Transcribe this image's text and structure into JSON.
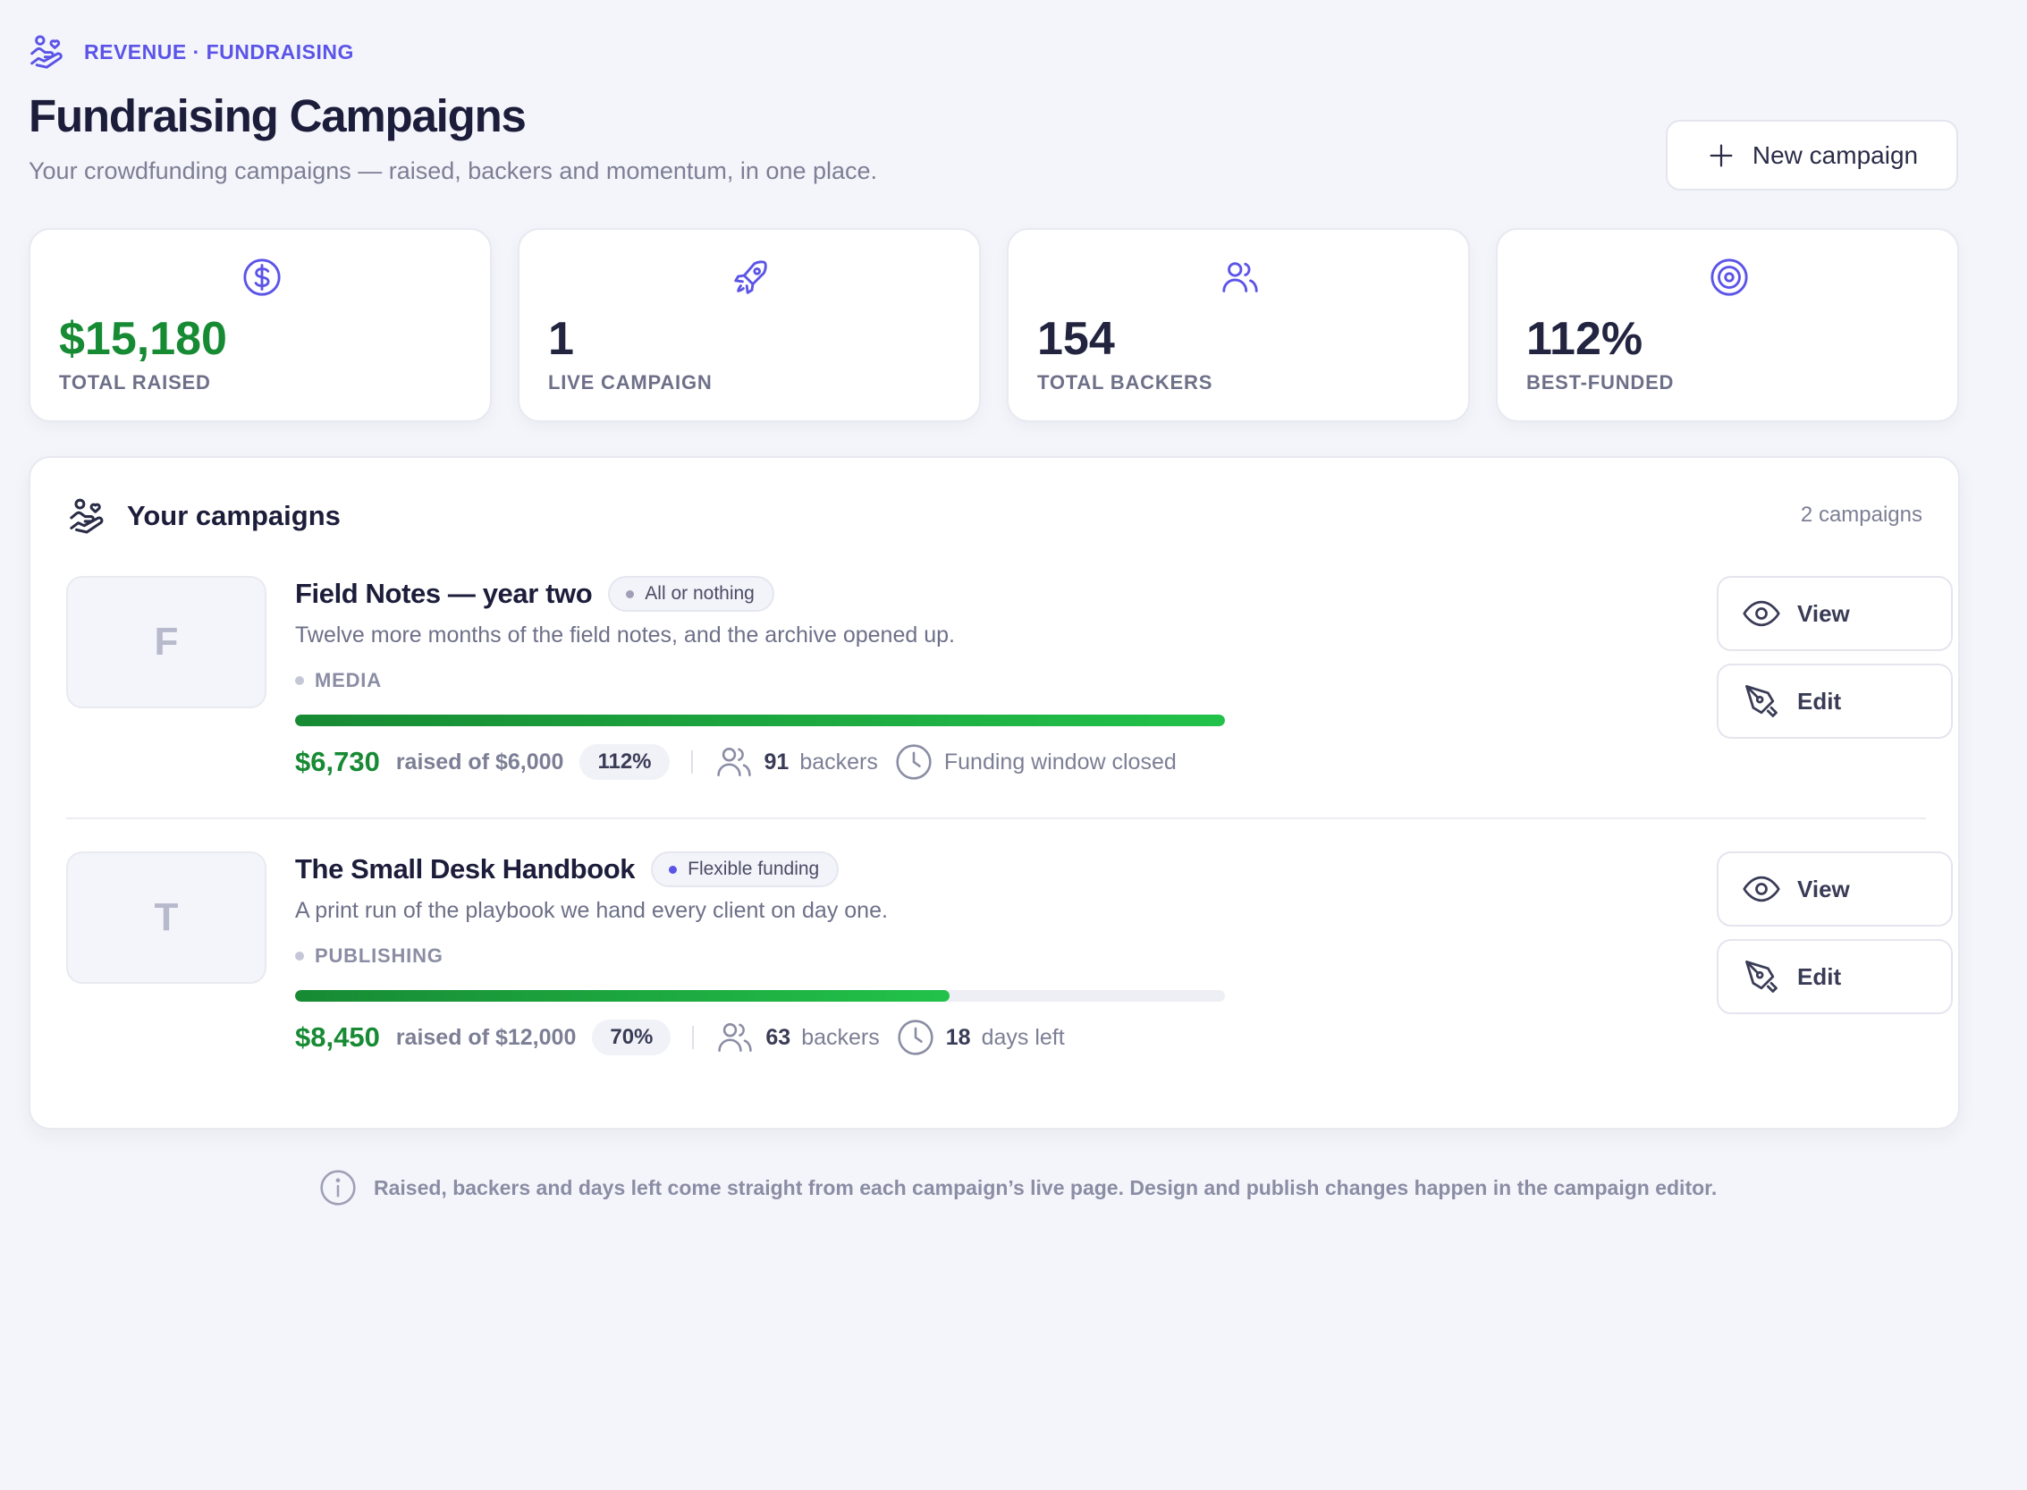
{
  "header": {
    "breadcrumb": "REVENUE · FUNDRAISING",
    "title": "Fundraising Campaigns",
    "subtitle": "Your crowdfunding campaigns — raised, backers and momentum, in one place.",
    "new_button_label": "New campaign"
  },
  "stats": [
    {
      "value": "$15,180",
      "label": "TOTAL RAISED",
      "icon": "dollar-circle-icon"
    },
    {
      "value": "1",
      "label": "LIVE CAMPAIGN",
      "icon": "rocket-icon"
    },
    {
      "value": "154",
      "label": "TOTAL BACKERS",
      "icon": "users-icon"
    },
    {
      "value": "112%",
      "label": "BEST-FUNDED",
      "icon": "target-icon"
    }
  ],
  "campaigns_panel": {
    "title": "Your campaigns",
    "count": "2 campaigns",
    "items": [
      {
        "initial": "F",
        "title": "Field Notes — year two",
        "tag": "All or nothing",
        "description": "Twelve more months of the field notes, and the archive opened up.",
        "category": "MEDIA",
        "raised": "$6,730",
        "goal_text": "raised of $6,000",
        "percent": "112%",
        "progress_fraction": 1.0,
        "backers_count": "91",
        "backers_label": "backers",
        "time_strong": "",
        "time_text": "Funding window closed",
        "view_label": "View",
        "edit_label": "Edit"
      },
      {
        "initial": "T",
        "title": "The Small Desk Handbook",
        "tag": "Flexible funding",
        "description": "A print run of the playbook we hand every client on day one.",
        "category": "PUBLISHING",
        "raised": "$8,450",
        "goal_text": "raised of $12,000",
        "percent": "70%",
        "progress_fraction": 0.704,
        "backers_count": "63",
        "backers_label": "backers",
        "time_strong": "18",
        "time_text": "days left",
        "view_label": "View",
        "edit_label": "Edit"
      }
    ]
  },
  "footnote": "Raised, backers and days left come straight from each campaign’s live page. Design and publish changes happen in the campaign editor.",
  "colors": {
    "accent": "#5b54e8",
    "success": "#178a34",
    "background": "#f4f5fa"
  }
}
